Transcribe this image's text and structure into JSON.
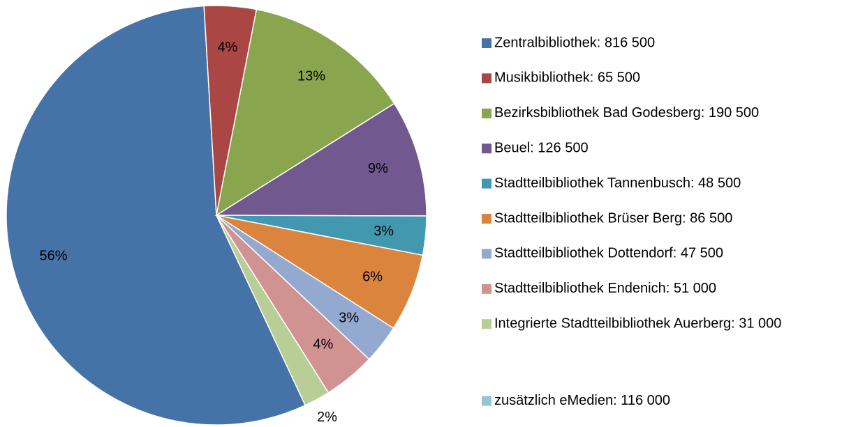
{
  "chart_data": {
    "type": "pie",
    "categories": [
      "Zentralbibliothek: 816 500",
      "Musikbibliothek: 65 500",
      "Bezirksbibliothek Bad Godesberg: 190 500",
      "Beuel: 126 500",
      "Stadtteilbibliothek Tannenbusch: 48 500",
      "Stadtteilbibliothek Brüser Berg: 86 500",
      "Stadtteilbibliothek Dottendorf: 47 500",
      "Stadtteilbibliothek Endenich: 51 000",
      "Integrierte Stadtteilbibliothek Auerberg: 31 000",
      "zusätzlich eMedien: 116 000"
    ],
    "values": [
      56,
      4,
      13,
      9,
      3,
      6,
      3,
      4,
      2,
      null
    ],
    "value_labels": [
      "56%",
      "4%",
      "13%",
      "9%",
      "3%",
      "6%",
      "3%",
      "4%",
      "2%",
      null
    ],
    "colors": [
      "#4572a7",
      "#aa4643",
      "#89a54e",
      "#71588f",
      "#4198af",
      "#db843d",
      "#93a9cf",
      "#d19392",
      "#b9cd96",
      "#92c5d8"
    ],
    "legend": "right"
  }
}
